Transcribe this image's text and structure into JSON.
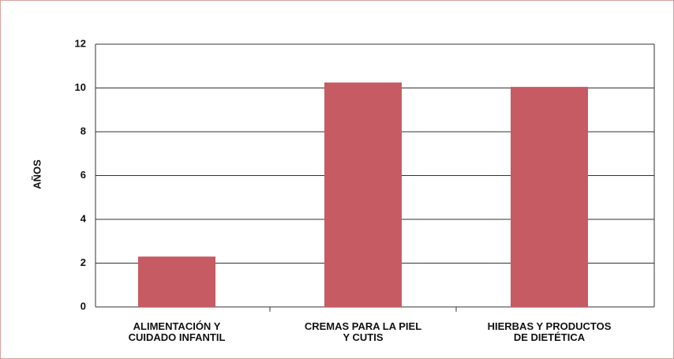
{
  "chart_data": {
    "type": "bar",
    "y_label": "AÑOS",
    "categories": [
      "ALIMENTACIÓN Y\nCUIDADO INFANTIL",
      "CREMAS PARA LA PIEL\nY CUTIS",
      "HIERBAS Y PRODUCTOS\nDE DIETÉTICA"
    ],
    "values": [
      2.3,
      10.25,
      10.05
    ],
    "color": "#c65b64",
    "ylim": [
      0,
      12
    ],
    "yticks": [
      0,
      2,
      4,
      6,
      8,
      10,
      12
    ],
    "grid": true
  }
}
